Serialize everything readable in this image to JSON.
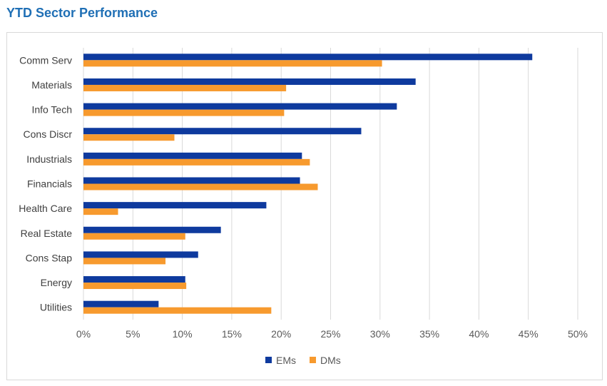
{
  "header": {
    "title": "YTD Sector Performance"
  },
  "colors": {
    "ems": "#0e3a9e",
    "dms": "#f79a2e",
    "grid": "#d9d9d9"
  },
  "chart_data": {
    "type": "bar",
    "orientation": "horizontal",
    "title": "YTD Sector Performance",
    "categories": [
      "Comm Serv",
      "Materials",
      "Info Tech",
      "Cons Discr",
      "Industrials",
      "Financials",
      "Health Care",
      "Real Estate",
      "Cons Stap",
      "Energy",
      "Utilities"
    ],
    "series": [
      {
        "name": "EMs",
        "values": [
          45.4,
          33.6,
          31.7,
          28.1,
          22.1,
          21.9,
          18.5,
          13.9,
          11.6,
          10.3,
          7.6
        ]
      },
      {
        "name": "DMs",
        "values": [
          30.2,
          20.5,
          20.3,
          9.2,
          22.9,
          23.7,
          3.5,
          10.3,
          8.3,
          10.4,
          19.0
        ]
      }
    ],
    "xlim": [
      0,
      50
    ],
    "xticks": [
      "0%",
      "5%",
      "10%",
      "15%",
      "20%",
      "25%",
      "30%",
      "35%",
      "40%",
      "45%",
      "50%"
    ],
    "grid": true,
    "legend": "bottom"
  }
}
